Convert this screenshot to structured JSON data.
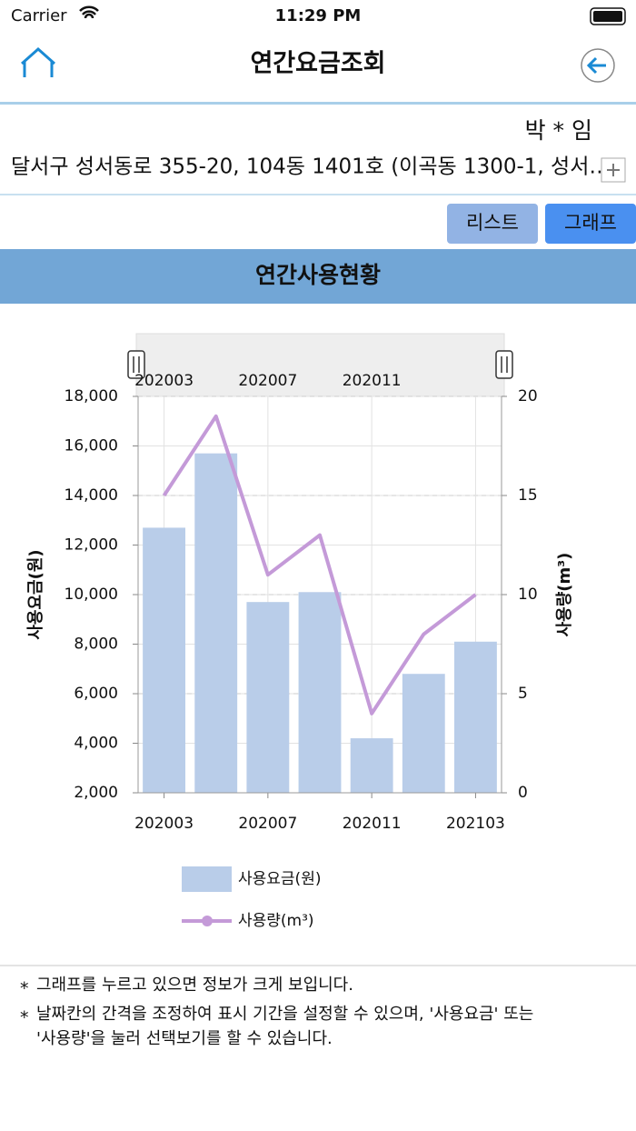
{
  "status_bar": {
    "carrier": "Carrier",
    "time": "11:29 PM"
  },
  "header": {
    "title": "연간요금조회"
  },
  "customer": {
    "name": "박 * 임",
    "address": "달서구 성서동로 355-20, 104동 1401호 (이곡동 1300-1, 성서…"
  },
  "tabs": [
    "리스트",
    "그래프"
  ],
  "section_title": "연간사용현황",
  "chart_data": {
    "type": "combo",
    "categories": [
      "202003",
      null,
      "202007",
      null,
      "202011",
      null,
      "202103"
    ],
    "y_label": "사용요금(원)",
    "y2_label": "사용량(m³)",
    "ylim": [
      2000,
      18000
    ],
    "yticks": [
      {
        "value": 2000,
        "label": "2,000"
      },
      {
        "value": 4000,
        "label": "4,000"
      },
      {
        "value": 6000,
        "label": "6,000"
      },
      {
        "value": 8000,
        "label": "8,000"
      },
      {
        "value": 10000,
        "label": "10,000"
      },
      {
        "value": 12000,
        "label": "12,000"
      },
      {
        "value": 14000,
        "label": "14,000"
      },
      {
        "value": 16000,
        "label": "16,000"
      },
      {
        "value": 18000,
        "label": "18,000"
      }
    ],
    "y2lim": [
      0,
      20
    ],
    "y2ticks": [
      0,
      5,
      10,
      15,
      20
    ],
    "grid": true,
    "series": [
      {
        "name": "사용요금(원)",
        "type": "bar",
        "color": "#b9cde9",
        "values": [
          12700,
          15700,
          9700,
          10100,
          4200,
          6800,
          8100
        ]
      },
      {
        "name": "사용량(m³)",
        "type": "line",
        "axis": "y2",
        "color": "#c49ad8",
        "values": [
          15,
          19,
          11,
          13,
          4,
          8,
          10
        ]
      }
    ]
  },
  "notes": [
    {
      "marker": "*",
      "lines": [
        "그래프를 누르고 있으면 정보가 크게 보입니다."
      ]
    },
    {
      "marker": "*",
      "lines": [
        "날짜칸의 간격을 조정하여 표시 기간을 설정할 수 있으며, '사용요금' 또는",
        "'사용량'을 눌러 선택보기를 할 수 있습니다."
      ]
    }
  ]
}
